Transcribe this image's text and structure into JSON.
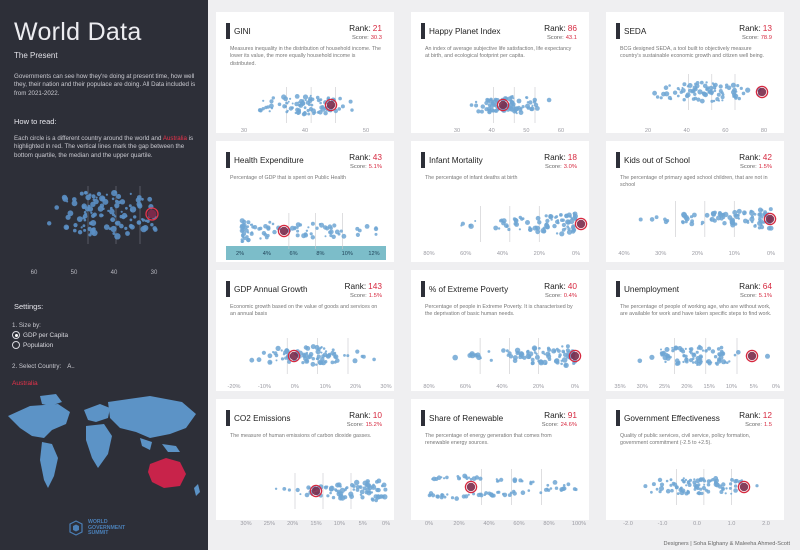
{
  "sidebar": {
    "title": "World Data",
    "subtitle": "The Present",
    "intro": "Governments can see how they're doing at present time, how well they, their nation and their populace are doing. All Data included is from 2021-2022.",
    "how_to_read": "How to read:",
    "explanation_pre": "Each circle is a different country around the world and ",
    "explanation_highlight": "Australia",
    "explanation_post": " is highlighted in red. The vertical lines mark the gap between the bottom quartile, the median and the upper quartile.",
    "legend_ticks": [
      "60",
      "50",
      "40",
      "30"
    ],
    "settings": "Settings:",
    "size_by_label": "1. Size by:",
    "size_options": [
      "GDP per Capita",
      "Population"
    ],
    "size_selected": "GDP per Capita",
    "select_country_label": "2. Select Country:",
    "select_country_value": "A..",
    "selected_country": "Australia",
    "logo_text": [
      "WORLD",
      "GOVERNMENT",
      "SUMMIT"
    ]
  },
  "colors": {
    "sidebar_bg": "#2d2f38",
    "highlight": "#d6283f",
    "dot": "#6fa6d3",
    "map_land": "#5c93c6",
    "health_band": "#7cbdc9"
  },
  "cards": [
    {
      "name": "GINI",
      "rank_label": "Rank:",
      "rank": "21",
      "score_label": "Score:",
      "score": "30.3",
      "desc": "Measures inequality in the distribution of household income. The lower its value, the more equally household income is distributed.",
      "ticks": [
        "30",
        "40",
        "50"
      ]
    },
    {
      "name": "Happy Planet Index",
      "rank_label": "Rank:",
      "rank": "86",
      "score_label": "Score:",
      "score": "43.1",
      "desc": "An index of average subjective life satisfaction, life expectancy at birth, and ecological footprint per capita.",
      "ticks": [
        "30",
        "40",
        "50",
        "60"
      ]
    },
    {
      "name": "SEDA",
      "rank_label": "Rank:",
      "rank": "13",
      "score_label": "Score:",
      "score": "78.9",
      "desc": "BCG designed SEDA, a tool built to objectively measure country's sustainable economic growth and citizen well being.",
      "ticks": [
        "20",
        "40",
        "60",
        "80"
      ]
    },
    {
      "name": "Health Expenditure",
      "rank_label": "Rank:",
      "rank": "43",
      "score_label": "Score:",
      "score": "5.1%",
      "desc": "Percentage of GDP that is spent on Public Health",
      "ticks": [
        "2%",
        "4%",
        "6%",
        "8%",
        "10%",
        "12%"
      ]
    },
    {
      "name": "Infant Mortality",
      "rank_label": "Rank:",
      "rank": "18",
      "score_label": "Score:",
      "score": "3.0%",
      "desc": "The percentage of infant deaths at birth",
      "ticks": [
        "80%",
        "60%",
        "40%",
        "20%",
        "0%"
      ]
    },
    {
      "name": "Kids out of School",
      "rank_label": "Rank:",
      "rank": "42",
      "score_label": "Score:",
      "score": "1.5%",
      "desc": "The percentage of primary aged school children, that are not in school",
      "ticks": [
        "40%",
        "30%",
        "20%",
        "10%",
        "0%"
      ]
    },
    {
      "name": "GDP Annual Growth",
      "rank_label": "Rank:",
      "rank": "143",
      "score_label": "Score:",
      "score": "1.5%",
      "desc": "Economic growth based on the value of goods and services on an annual basis",
      "ticks": [
        "-20%",
        "-10%",
        "0%",
        "10%",
        "20%",
        "30%"
      ]
    },
    {
      "name": "% of Extreme Poverty",
      "rank_label": "Rank:",
      "rank": "40",
      "score_label": "Score:",
      "score": "0.4%",
      "desc": "Percentage of people in Extreme Poverty. It is characterised by the deprivation of basic human needs.",
      "ticks": [
        "80%",
        "60%",
        "40%",
        "20%",
        "0%"
      ]
    },
    {
      "name": "Unemployment",
      "rank_label": "Rank:",
      "rank": "64",
      "score_label": "Score:",
      "score": "5.1%",
      "desc": "The percentage of people of working age, who are without work, are available for work and have taken specific steps to find work.",
      "ticks": [
        "35%",
        "30%",
        "25%",
        "20%",
        "15%",
        "10%",
        "5%",
        "0%"
      ]
    },
    {
      "name": "CO2 Emissions",
      "rank_label": "Rank:",
      "rank": "10",
      "score_label": "Score:",
      "score": "15.2%",
      "desc": "The measure of human emissions of carbon dioxide gasses.",
      "ticks": [
        "30%",
        "25%",
        "20%",
        "15%",
        "10%",
        "5%",
        "0%"
      ]
    },
    {
      "name": "Share of Renewable",
      "rank_label": "Rank:",
      "rank": "91",
      "score_label": "Score:",
      "score": "24.6%",
      "desc": "The percentage of energy generation that comes from renewable energy sources.",
      "ticks": [
        "0%",
        "20%",
        "40%",
        "60%",
        "80%",
        "100%"
      ]
    },
    {
      "name": "Government Effectiveness",
      "rank_label": "Rank:",
      "rank": "12",
      "score_label": "Score:",
      "score": "1.5",
      "desc": "Quality of public services, civil service, policy formation, government commitment (-2.5 to +2.5).",
      "ticks": [
        "-2.0",
        "-1.0",
        "0.0",
        "1.0",
        "2.0"
      ]
    }
  ],
  "footer": "Designers | Soha Elghany & Maleeha Ahmed-Scott"
}
